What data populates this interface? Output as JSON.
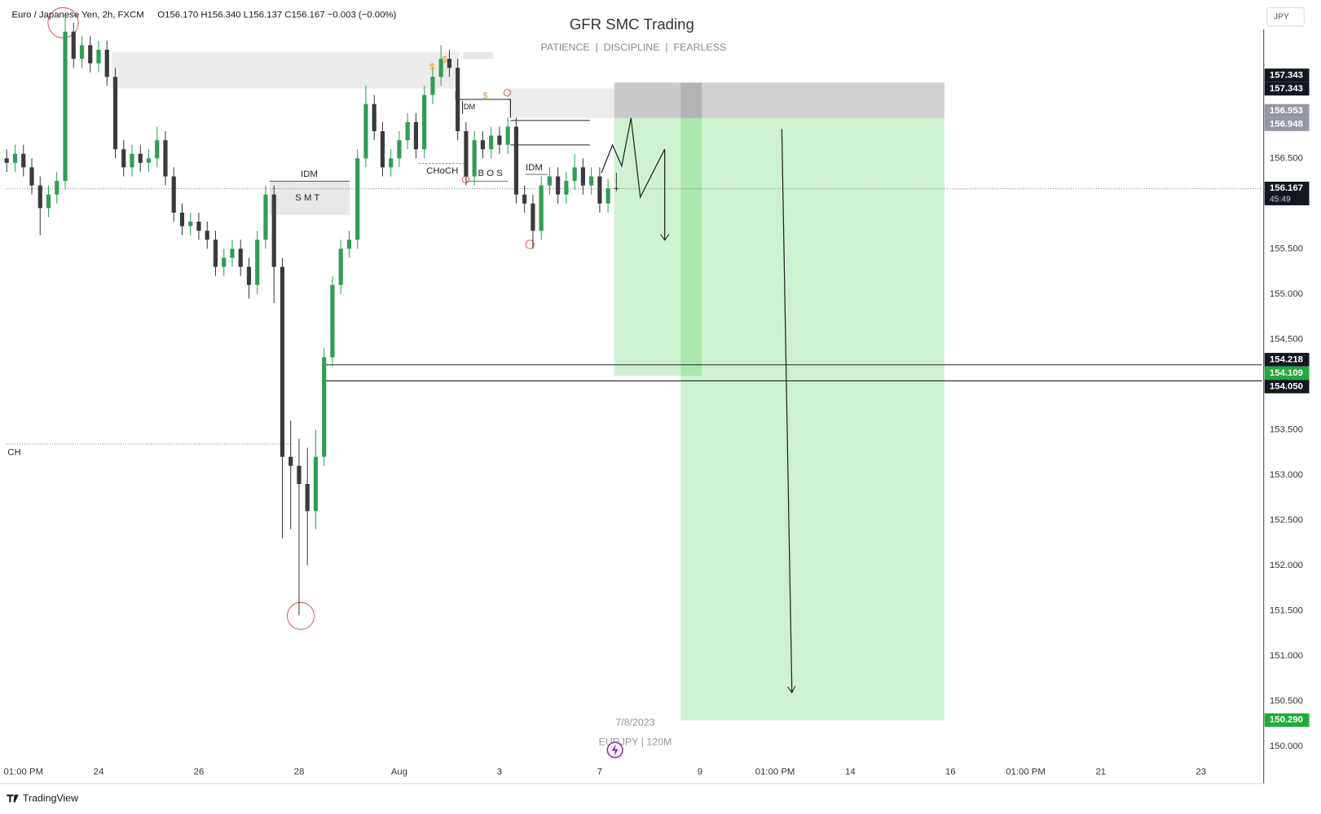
{
  "header": {
    "legend": "Euro / Japanese Yen, 2h, FXCM",
    "ohlc": "O156.170  H156.340  L156.137  C156.167  −0.003 (−0.00%)"
  },
  "watermark": {
    "title": "GFR SMC Trading",
    "subtitle": "PATIENCE  |  DISCIPLINE  |  FEARLESS",
    "date": "7/8/2023",
    "symbol": "EURJPY | 120M"
  },
  "currency": "JPY",
  "brand": "TradingView",
  "annotations": [
    "IDM",
    "S M T",
    "CHoCH",
    "B O S",
    "IDM",
    "IDM",
    "$",
    "$",
    "$",
    "CH"
  ],
  "chart_data": {
    "type": "candlestick",
    "up_color": "#2e9e55",
    "down_color": "#3a3a3a",
    "x": [
      0,
      2,
      4,
      6,
      8,
      10,
      12,
      14,
      16,
      18,
      20,
      22,
      24,
      26,
      28,
      30,
      32,
      34,
      36,
      38,
      40,
      42,
      44,
      46,
      48,
      50,
      52,
      54,
      56,
      58,
      60,
      62,
      64,
      66,
      68,
      70,
      72,
      74,
      76,
      78,
      80,
      82,
      84,
      86,
      88,
      90,
      92,
      94,
      96,
      98,
      100,
      102,
      104,
      106,
      108,
      110,
      112,
      114,
      116,
      118,
      120,
      122,
      124,
      126,
      128,
      130,
      132,
      134,
      136,
      138,
      140,
      142,
      144,
      146
    ],
    "open": [
      156.5,
      156.45,
      156.55,
      156.4,
      156.2,
      155.95,
      156.1,
      156.25,
      157.9,
      157.6,
      157.75,
      157.55,
      157.7,
      157.4,
      156.6,
      156.4,
      156.55,
      156.45,
      156.5,
      156.7,
      156.3,
      155.9,
      155.75,
      155.8,
      155.7,
      155.6,
      155.3,
      155.4,
      155.5,
      155.3,
      155.1,
      155.6,
      156.1,
      155.3,
      153.2,
      153.1,
      152.9,
      152.6,
      153.2,
      154.3,
      155.1,
      155.5,
      155.6,
      156.5,
      157.1,
      156.8,
      156.4,
      156.5,
      156.7,
      156.9,
      156.6,
      157.2,
      157.4,
      157.6,
      157.5,
      156.8,
      156.3,
      156.7,
      156.6,
      156.75,
      156.65,
      156.85,
      156.1,
      156.0,
      155.7,
      156.2,
      156.3,
      156.1,
      156.25,
      156.4,
      156.2,
      156.3,
      156.0,
      156.17
    ],
    "high": [
      156.6,
      156.65,
      156.65,
      156.5,
      156.3,
      156.2,
      156.35,
      158.1,
      158.0,
      157.85,
      157.85,
      157.8,
      157.8,
      157.5,
      156.7,
      156.65,
      156.65,
      156.6,
      156.85,
      156.8,
      156.4,
      156.0,
      155.9,
      155.9,
      155.8,
      155.7,
      155.5,
      155.6,
      155.6,
      155.4,
      155.7,
      156.2,
      156.2,
      155.4,
      153.6,
      153.4,
      153.3,
      153.5,
      154.4,
      155.2,
      155.6,
      155.7,
      156.6,
      157.3,
      157.2,
      156.9,
      156.6,
      156.8,
      157.0,
      157.0,
      157.3,
      157.5,
      157.75,
      157.7,
      157.6,
      156.9,
      156.8,
      156.8,
      156.85,
      156.85,
      156.95,
      156.95,
      156.2,
      156.1,
      156.3,
      156.4,
      156.4,
      156.35,
      156.55,
      156.5,
      156.4,
      156.4,
      156.27,
      156.34
    ],
    "low": [
      156.35,
      156.35,
      156.3,
      156.1,
      155.65,
      155.85,
      156.0,
      156.15,
      157.5,
      157.5,
      157.45,
      157.45,
      157.3,
      156.5,
      156.3,
      156.3,
      156.35,
      156.35,
      156.4,
      156.2,
      155.8,
      155.65,
      155.65,
      155.6,
      155.5,
      155.2,
      155.2,
      155.3,
      155.2,
      154.95,
      155.0,
      155.5,
      154.9,
      152.3,
      152.4,
      151.45,
      152.0,
      152.4,
      153.1,
      154.2,
      155.0,
      155.4,
      155.5,
      156.4,
      156.7,
      156.3,
      156.3,
      156.4,
      156.6,
      156.5,
      156.5,
      157.1,
      157.3,
      157.4,
      156.7,
      156.2,
      156.2,
      156.5,
      156.5,
      156.55,
      156.55,
      156.0,
      155.9,
      155.5,
      155.6,
      156.1,
      156.0,
      156.0,
      156.15,
      156.1,
      156.1,
      155.9,
      155.9,
      156.137
    ],
    "close": [
      156.45,
      156.55,
      156.4,
      156.2,
      155.95,
      156.1,
      156.25,
      157.9,
      157.6,
      157.75,
      157.55,
      157.7,
      157.4,
      156.6,
      156.4,
      156.55,
      156.45,
      156.5,
      156.7,
      156.3,
      155.9,
      155.75,
      155.8,
      155.7,
      155.6,
      155.3,
      155.4,
      155.5,
      155.3,
      155.1,
      155.6,
      156.1,
      155.3,
      153.2,
      153.1,
      152.9,
      152.6,
      153.2,
      154.3,
      155.1,
      155.5,
      155.6,
      156.5,
      157.1,
      156.8,
      156.4,
      156.5,
      156.7,
      156.9,
      156.6,
      157.2,
      157.4,
      157.6,
      157.5,
      156.8,
      156.3,
      156.7,
      156.6,
      156.75,
      156.65,
      156.85,
      156.1,
      156.0,
      155.7,
      156.2,
      156.3,
      156.1,
      156.25,
      156.4,
      156.2,
      156.3,
      156.0,
      156.17,
      156.167
    ],
    "xlim": [
      0,
      299
    ],
    "xticks": [
      {
        "value": 4,
        "label": "01:00 PM"
      },
      {
        "value": 22,
        "label": "24"
      },
      {
        "value": 46,
        "label": "26"
      },
      {
        "value": 70,
        "label": "28"
      },
      {
        "value": 94,
        "label": "Aug"
      },
      {
        "value": 118,
        "label": "3"
      },
      {
        "value": 142,
        "label": "7"
      },
      {
        "value": 166,
        "label": "9"
      },
      {
        "value": 184,
        "label": "01:00 PM"
      },
      {
        "value": 202,
        "label": "14"
      },
      {
        "value": 226,
        "label": "16"
      },
      {
        "value": 244,
        "label": "01:00 PM"
      },
      {
        "value": 262,
        "label": "21"
      },
      {
        "value": 286,
        "label": "23"
      }
    ],
    "ylim": [
      149.82,
      158.25
    ],
    "yticks": [
      {
        "value": 156.5,
        "label": "156.500"
      },
      {
        "value": 155.5,
        "label": "155.500"
      },
      {
        "value": 155,
        "label": "155.000"
      },
      {
        "value": 154.5,
        "label": "154.500"
      },
      {
        "value": 153.5,
        "label": "153.500"
      },
      {
        "value": 153,
        "label": "153.000"
      },
      {
        "value": 152.5,
        "label": "152.500"
      },
      {
        "value": 152,
        "label": "152.000"
      },
      {
        "value": 151.5,
        "label": "151.500"
      },
      {
        "value": 151,
        "label": "151.000"
      },
      {
        "value": 150.5,
        "label": "150.500"
      },
      {
        "value": 150,
        "label": "150.000"
      }
    ],
    "grid": false,
    "price_labels": [
      {
        "value": 157.343,
        "label": "157.343",
        "color": "#131722"
      },
      {
        "value": 157.343,
        "label": "157.343",
        "color": "#131722"
      },
      {
        "value": 156.953,
        "label": "156.953",
        "color": "#9598a1"
      },
      {
        "value": 156.948,
        "label": "156.948",
        "color": "#9598a1"
      },
      {
        "value": 156.167,
        "label": "156.167",
        "color": "#131722",
        "countdown": "45:49"
      },
      {
        "value": 154.218,
        "label": "154.218",
        "color": "#131722"
      },
      {
        "value": 154.109,
        "label": "154.109",
        "color": "#22ab3b"
      },
      {
        "value": 154.05,
        "label": "154.050",
        "color": "#131722"
      },
      {
        "value": 150.29,
        "label": "150.290",
        "color": "#22ab3b"
      }
    ]
  }
}
